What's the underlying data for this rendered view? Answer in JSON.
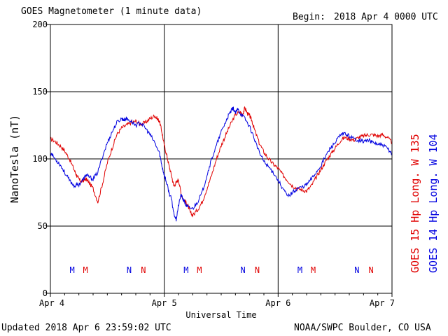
{
  "header": {
    "title": "GOES Magnetometer (1 minute data)",
    "begin_label": "Begin:",
    "begin_value": "2018 Apr 4 0000 UTC"
  },
  "footer": {
    "updated": "Updated 2018 Apr  6 23:59:02 UTC",
    "source": "NOAA/SWPC Boulder, CO USA"
  },
  "colors": {
    "goes15": "#e00000",
    "goes14": "#0000e0",
    "axes": "#000000"
  },
  "chart_data": {
    "type": "line",
    "xlabel": "Universal Time",
    "ylabel": "NanoTesla (nT)",
    "ylim": [
      0,
      200
    ],
    "yticks": [
      0,
      50,
      100,
      150,
      200
    ],
    "xlim": [
      0,
      72
    ],
    "xticks": [
      {
        "hour": 0,
        "label": "Apr 4"
      },
      {
        "hour": 24,
        "label": "Apr 5"
      },
      {
        "hour": 48,
        "label": "Apr 6"
      },
      {
        "hour": 72,
        "label": "Apr 7"
      }
    ],
    "grid": true,
    "legend_position": "right",
    "series": [
      {
        "name": "GOES 15 Hp  Long. W 135",
        "color": "#e00000",
        "x": [
          0,
          1,
          2,
          3,
          4,
          5,
          5.5,
          6,
          6.5,
          7,
          7.5,
          8,
          9,
          10,
          11,
          12,
          13,
          14,
          15,
          16,
          17,
          18,
          19,
          20,
          21,
          22,
          22.5,
          23,
          23.5,
          24,
          24.5,
          25,
          25.5,
          26,
          26.5,
          27,
          27.5,
          28,
          28.5,
          29,
          29.5,
          30,
          31,
          32,
          33,
          34,
          35,
          36,
          37,
          38,
          39,
          40,
          40.5,
          41,
          41.5,
          42,
          42.5,
          43,
          44,
          45,
          46,
          47,
          48,
          49,
          50,
          51,
          52,
          53,
          54,
          55,
          56,
          57,
          58,
          59,
          60,
          61,
          62,
          63,
          64,
          65,
          66,
          67,
          68,
          69,
          70,
          71,
          72
        ],
        "y": [
          115,
          113,
          110,
          106,
          100,
          92,
          88,
          85,
          83,
          84,
          85,
          83,
          78,
          68,
          82,
          97,
          108,
          118,
          123,
          125,
          127,
          128,
          126,
          127,
          130,
          132,
          130,
          128,
          120,
          110,
          103,
          95,
          88,
          80,
          82,
          85,
          75,
          70,
          68,
          65,
          60,
          58,
          62,
          68,
          78,
          88,
          100,
          110,
          118,
          126,
          133,
          135,
          133,
          138,
          134,
          132,
          128,
          122,
          112,
          105,
          100,
          96,
          93,
          88,
          84,
          80,
          78,
          77,
          76,
          80,
          86,
          92,
          98,
          103,
          108,
          113,
          116,
          115,
          114,
          116,
          117,
          118,
          118,
          117,
          118,
          116,
          112
        ]
      },
      {
        "name": "GOES 14 Hp  Long. W 104",
        "color": "#0000e0",
        "x": [
          0,
          1,
          2,
          3,
          4,
          5,
          6,
          7,
          7.5,
          8,
          9,
          10,
          11,
          12,
          13,
          14,
          15,
          15.5,
          16,
          17,
          18,
          19,
          20,
          21,
          22,
          23,
          23.5,
          24,
          24.5,
          25,
          25.5,
          26,
          26.5,
          27,
          27.5,
          28,
          28.5,
          29,
          30,
          31,
          32,
          33,
          34,
          35,
          36,
          37,
          37.5,
          38,
          38.5,
          39,
          39.5,
          40,
          41,
          42,
          43,
          44,
          45,
          46,
          47,
          48,
          49,
          50,
          51,
          52,
          53,
          54,
          55,
          56,
          57,
          58,
          59,
          60,
          61,
          62,
          63,
          64,
          65,
          66,
          67,
          68,
          69,
          70,
          71,
          72
        ],
        "y": [
          105,
          100,
          96,
          90,
          84,
          80,
          81,
          85,
          88,
          87,
          85,
          90,
          102,
          112,
          120,
          127,
          130,
          129,
          130,
          128,
          125,
          127,
          123,
          118,
          112,
          104,
          95,
          88,
          82,
          75,
          70,
          60,
          55,
          65,
          73,
          70,
          66,
          64,
          63,
          68,
          75,
          88,
          100,
          110,
          120,
          128,
          132,
          135,
          138,
          134,
          137,
          134,
          130,
          124,
          115,
          105,
          98,
          94,
          90,
          84,
          78,
          72,
          75,
          78,
          79,
          81,
          85,
          90,
          95,
          102,
          108,
          112,
          117,
          119,
          117,
          115,
          114,
          113,
          114,
          112,
          111,
          110,
          108,
          104
        ]
      }
    ],
    "annotations": [
      {
        "text": "M",
        "hour": 4.6,
        "series": "GOES 14"
      },
      {
        "text": "M",
        "hour": 7.4,
        "series": "GOES 15"
      },
      {
        "text": "N",
        "hour": 16.6,
        "series": "GOES 14"
      },
      {
        "text": "N",
        "hour": 19.6,
        "series": "GOES 15"
      },
      {
        "text": "M",
        "hour": 28.6,
        "series": "GOES 14"
      },
      {
        "text": "M",
        "hour": 31.4,
        "series": "GOES 15"
      },
      {
        "text": "N",
        "hour": 40.6,
        "series": "GOES 14"
      },
      {
        "text": "N",
        "hour": 43.6,
        "series": "GOES 15"
      },
      {
        "text": "M",
        "hour": 52.6,
        "series": "GOES 14"
      },
      {
        "text": "M",
        "hour": 55.4,
        "series": "GOES 15"
      },
      {
        "text": "N",
        "hour": 64.6,
        "series": "GOES 14"
      },
      {
        "text": "N",
        "hour": 67.6,
        "series": "GOES 15"
      }
    ]
  }
}
